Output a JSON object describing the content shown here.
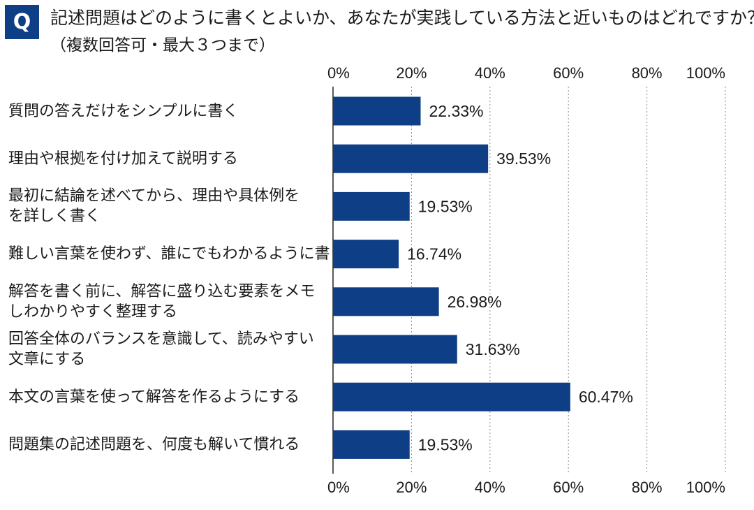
{
  "header": {
    "badge": "Q",
    "title": "記述問題はどのように書くとよいか、あなたが実践している方法と近いものはどれですか？",
    "subtitle": "（複数回答可・最大３つまで）"
  },
  "chart_data": {
    "type": "bar",
    "orientation": "horizontal",
    "categories": [
      [
        "質問の答えだけをシンプルに書く"
      ],
      [
        "理由や根拠を付け加えて説明する"
      ],
      [
        "最初に結論を述べてから、理由や具体例を",
        "を詳しく書く"
      ],
      [
        "難しい言葉を使わず、誰にでもわかるように書く"
      ],
      [
        "解答を書く前に、解答に盛り込む要素をメモ",
        "しわかりやすく整理する"
      ],
      [
        "回答全体のバランスを意識して、読みやすい",
        "文章にする"
      ],
      [
        "本文の言葉を使って解答を作るようにする"
      ],
      [
        "問題集の記述問題を、何度も解いて慣れる"
      ]
    ],
    "values": [
      22.33,
      39.53,
      19.53,
      16.74,
      26.98,
      31.63,
      60.47,
      19.53
    ],
    "value_labels": [
      "22.33%",
      "39.53%",
      "19.53%",
      "16.74%",
      "26.98%",
      "31.63%",
      "60.47%",
      "19.53%"
    ],
    "xlim": [
      0,
      100
    ],
    "ticks": [
      0,
      20,
      40,
      60,
      80,
      100
    ],
    "tick_labels": [
      "0%",
      "20%",
      "40%",
      "60%",
      "80%",
      "100%"
    ],
    "axis_position": "top and bottom",
    "grid": true,
    "bar_color": "#0e3f86"
  }
}
